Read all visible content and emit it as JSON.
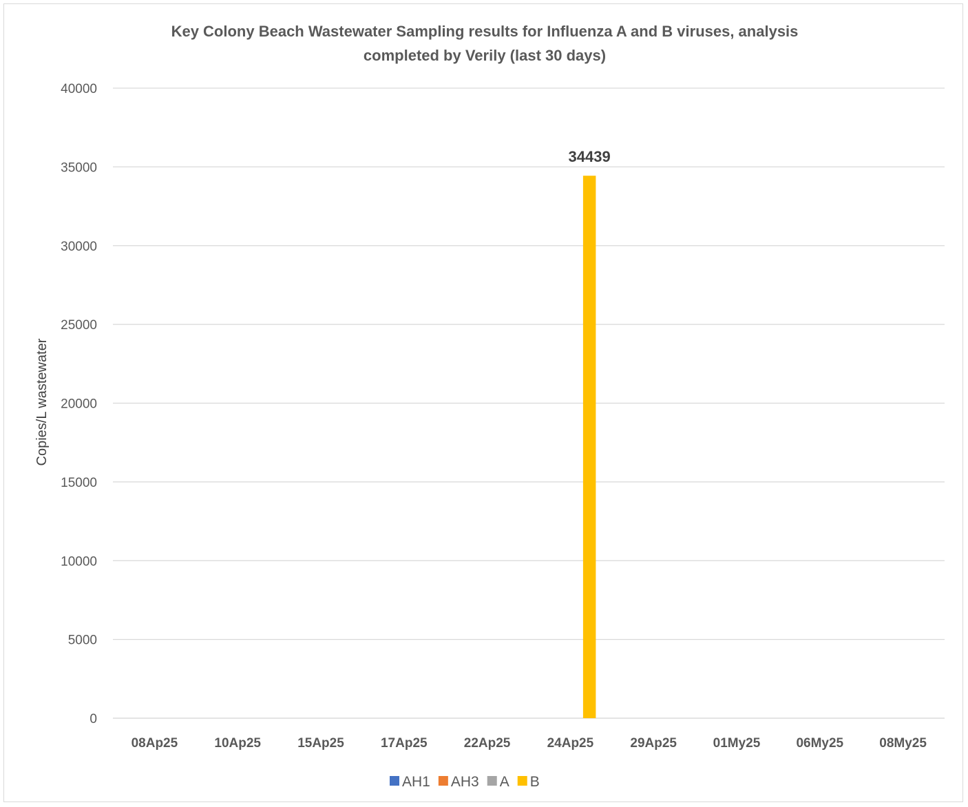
{
  "chart_data": {
    "type": "bar",
    "title_lines": [
      "Key Colony Beach Wastewater Sampling results for Influenza A and B viruses, analysis",
      "completed by Verily (last 30 days)"
    ],
    "xlabel": "",
    "ylabel": "Copies/L wastewater",
    "ylim": [
      0,
      40000
    ],
    "yticks": [
      0,
      5000,
      10000,
      15000,
      20000,
      25000,
      30000,
      35000,
      40000
    ],
    "grid": true,
    "legend_position": "bottom",
    "categories": [
      "08Ap25",
      "10Ap25",
      "15Ap25",
      "17Ap25",
      "22Ap25",
      "24Ap25",
      "29Ap25",
      "01My25",
      "06My25",
      "08My25"
    ],
    "series": [
      {
        "name": "AH1",
        "color": "#4472C4",
        "values": [
          0,
          0,
          0,
          0,
          0,
          0,
          0,
          0,
          0,
          0
        ]
      },
      {
        "name": "AH3",
        "color": "#ED7D31",
        "values": [
          0,
          0,
          0,
          0,
          0,
          0,
          0,
          0,
          0,
          0
        ]
      },
      {
        "name": "A",
        "color": "#A5A5A5",
        "values": [
          0,
          0,
          0,
          0,
          0,
          0,
          0,
          0,
          0,
          0
        ]
      },
      {
        "name": "B",
        "color": "#FFC000",
        "values": [
          0,
          0,
          0,
          0,
          0,
          34439,
          0,
          0,
          0,
          0
        ]
      }
    ],
    "data_labels": [
      {
        "series": "B",
        "category": "24Ap25",
        "text": "34439"
      }
    ]
  }
}
